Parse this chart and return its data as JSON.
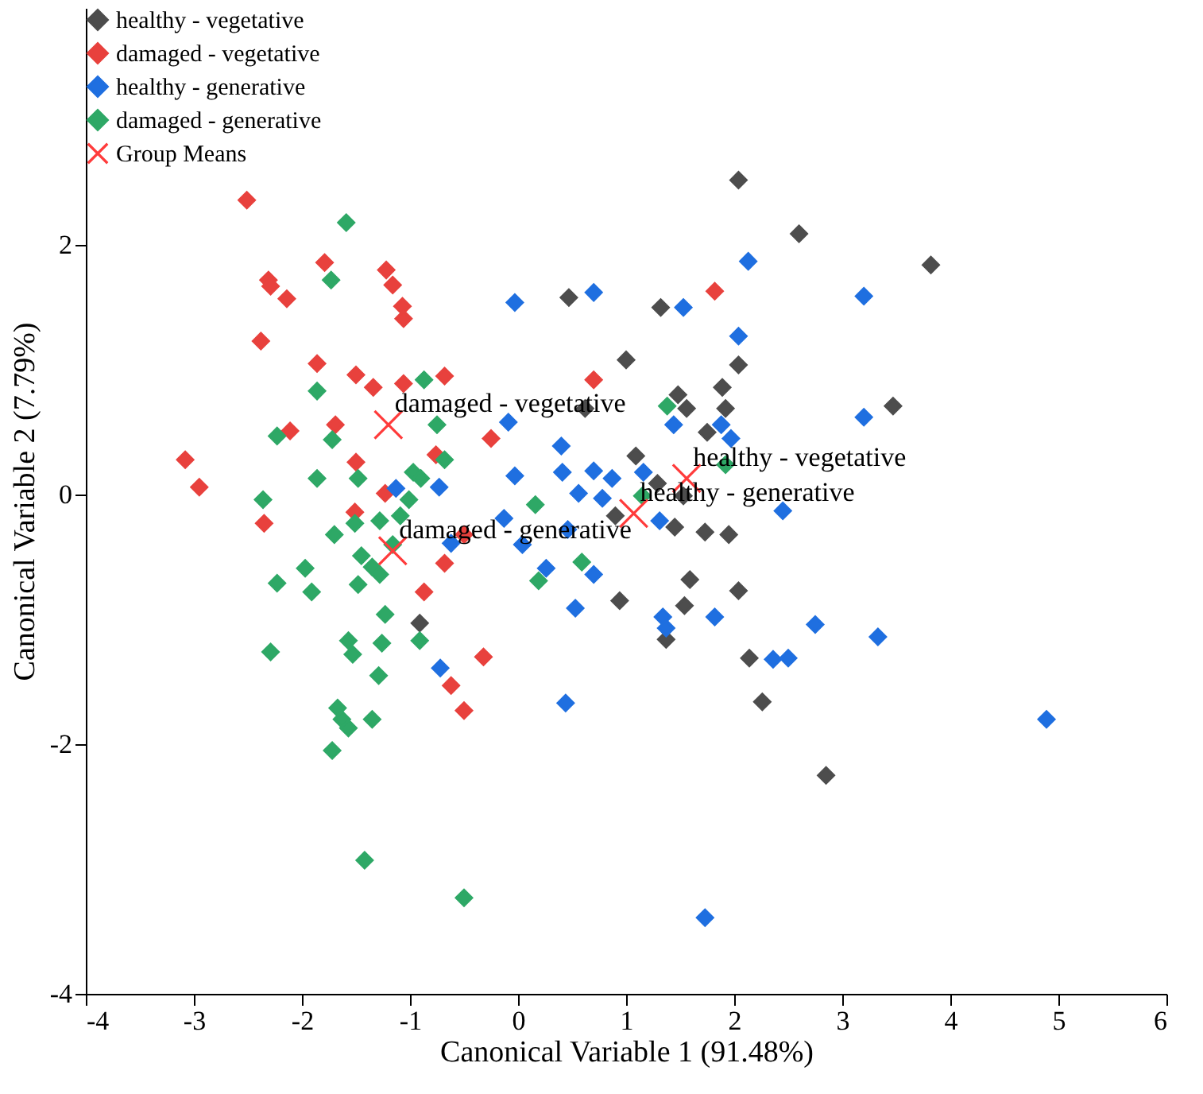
{
  "chart_data": {
    "type": "scatter",
    "xlabel": "Canonical Variable 1 (91.48%)",
    "ylabel": "Canonical Variable 2 (7.79%)",
    "xlim": [
      -4,
      6
    ],
    "ylim": [
      -4,
      3.9
    ],
    "xticks": [
      -4,
      -3,
      -2,
      -1,
      0,
      1,
      2,
      3,
      4,
      5,
      6
    ],
    "yticks": [
      -4,
      -2,
      0,
      2
    ],
    "grid": false,
    "legend": "top left",
    "marker": "diamond",
    "series": [
      {
        "name": "healthy - vegetative",
        "color": "#4d4d4d",
        "x": [
          2.04,
          2.6,
          3.82,
          0.47,
          1.32,
          1.0,
          2.04,
          1.89,
          1.92,
          1.48,
          1.56,
          0.62,
          1.75,
          3.47,
          1.09,
          1.29,
          1.53,
          1.45,
          1.73,
          1.95,
          0.9,
          1.59,
          2.04,
          1.54,
          1.37,
          2.14,
          2.26,
          2.85,
          -0.91,
          0.94
        ],
        "values": [
          2.52,
          2.09,
          1.84,
          1.58,
          1.5,
          1.08,
          1.04,
          0.86,
          0.69,
          0.8,
          0.69,
          0.69,
          0.5,
          0.71,
          0.31,
          0.09,
          -0.01,
          -0.26,
          -0.3,
          -0.32,
          -0.17,
          -0.68,
          -0.77,
          -0.89,
          -1.16,
          -1.31,
          -1.66,
          -2.25,
          -1.03,
          -0.85
        ]
      },
      {
        "name": "damaged - vegetative",
        "color": "#e8413d",
        "x": [
          -2.51,
          -2.31,
          -2.29,
          -2.14,
          -1.79,
          -1.22,
          -1.16,
          -1.07,
          -1.06,
          -2.38,
          -1.86,
          -1.5,
          -1.34,
          -1.06,
          -0.68,
          -2.11,
          -1.69,
          -3.08,
          -2.95,
          -1.5,
          -0.76,
          -0.25,
          -1.23,
          -2.35,
          -1.51,
          -0.5,
          -0.68,
          -0.32,
          -0.62,
          -0.5,
          -0.87,
          1.82,
          0.7
        ],
        "values": [
          2.36,
          1.72,
          1.67,
          1.57,
          1.86,
          1.8,
          1.68,
          1.51,
          1.41,
          1.23,
          1.05,
          0.96,
          0.86,
          0.89,
          0.95,
          0.51,
          0.56,
          0.28,
          0.06,
          0.26,
          0.32,
          0.45,
          0.01,
          -0.23,
          -0.14,
          -0.32,
          -0.55,
          -1.3,
          -1.53,
          -1.73,
          -0.78,
          1.63,
          0.92
        ]
      },
      {
        "name": "healthy - generative",
        "color": "#1f6fe0",
        "x": [
          -0.03,
          0.7,
          1.53,
          2.13,
          3.2,
          2.04,
          -0.09,
          0.4,
          1.44,
          1.88,
          1.97,
          3.2,
          -0.03,
          0.41,
          0.7,
          0.87,
          1.16,
          0.56,
          0.78,
          2.45,
          1.31,
          0.04,
          0.46,
          0.26,
          0.7,
          0.53,
          1.34,
          1.37,
          1.82,
          2.75,
          3.33,
          2.36,
          2.5,
          0.44,
          4.89,
          1.73,
          -1.13,
          -0.73,
          -0.13,
          -0.62,
          -0.72
        ],
        "values": [
          1.54,
          1.62,
          1.5,
          1.87,
          1.59,
          1.27,
          0.58,
          0.39,
          0.56,
          0.56,
          0.45,
          0.62,
          0.15,
          0.18,
          0.19,
          0.13,
          0.18,
          0.01,
          -0.03,
          -0.13,
          -0.21,
          -0.4,
          -0.28,
          -0.59,
          -0.64,
          -0.91,
          -0.98,
          -1.07,
          -0.98,
          -1.04,
          -1.14,
          -1.32,
          -1.31,
          -1.67,
          -1.8,
          -3.39,
          0.05,
          0.06,
          -0.19,
          -0.39,
          -1.39
        ]
      },
      {
        "name": "damaged - generative",
        "color": "#2ea866",
        "x": [
          -1.59,
          -1.73,
          -1.86,
          -0.87,
          -2.23,
          -1.72,
          -0.75,
          -1.86,
          -1.48,
          -0.97,
          -0.9,
          -0.68,
          -2.36,
          -1.01,
          -1.7,
          -1.51,
          -1.28,
          -1.09,
          -1.16,
          -1.45,
          -1.35,
          -1.28,
          -1.48,
          -1.97,
          -2.23,
          -1.91,
          -1.23,
          -0.91,
          -1.57,
          -1.53,
          -1.26,
          -2.29,
          -1.29,
          -1.67,
          -1.63,
          -1.57,
          -1.35,
          -1.72,
          -1.42,
          -0.5,
          1.38,
          1.92,
          1.15,
          0.16,
          0.59,
          0.19
        ],
        "values": [
          2.18,
          1.72,
          0.83,
          0.92,
          0.47,
          0.44,
          0.56,
          0.13,
          0.13,
          0.18,
          0.13,
          0.28,
          -0.04,
          -0.04,
          -0.32,
          -0.23,
          -0.21,
          -0.17,
          -0.4,
          -0.49,
          -0.58,
          -0.64,
          -0.72,
          -0.59,
          -0.71,
          -0.78,
          -0.96,
          -1.17,
          -1.17,
          -1.28,
          -1.19,
          -1.26,
          -1.45,
          -1.71,
          -1.8,
          -1.87,
          -1.8,
          -2.05,
          -2.93,
          -3.23,
          0.71,
          0.24,
          -0.01,
          -0.08,
          -0.54,
          -0.69
        ]
      },
      {
        "name": "Group Means",
        "color": "#ff3b3b",
        "marker": "cross",
        "x": [
          -1.2,
          -1.16,
          1.56,
          1.07
        ],
        "values": [
          0.56,
          -0.45,
          0.13,
          -0.15
        ]
      }
    ],
    "annotations": [
      {
        "text": "damaged - vegetative",
        "x": -1.2,
        "y": 0.56
      },
      {
        "text": "damaged - generative",
        "x": -1.16,
        "y": -0.45
      },
      {
        "text": "healthy - vegetative",
        "x": 1.56,
        "y": 0.13
      },
      {
        "text": "healthy - generative",
        "x": 1.07,
        "y": -0.15
      }
    ]
  }
}
